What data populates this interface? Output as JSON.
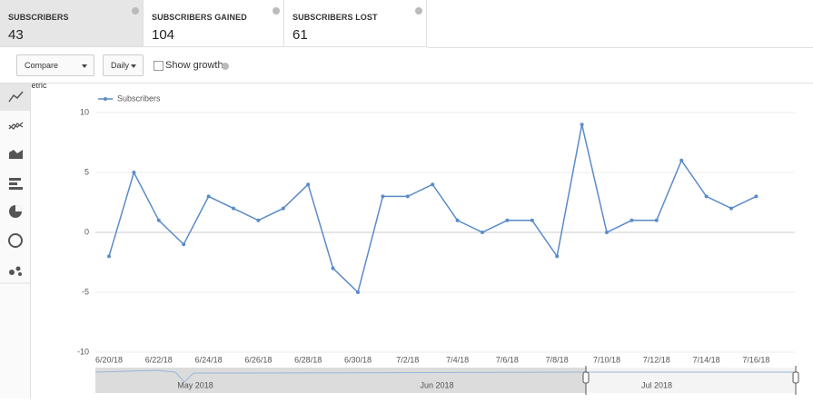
{
  "metrics": [
    {
      "label": "SUBSCRIBERS",
      "value": 43
    },
    {
      "label": "SUBSCRIBERS GAINED",
      "value": 104
    },
    {
      "label": "SUBSCRIBERS LOST",
      "value": 61
    }
  ],
  "controls": {
    "compare": "Compare metric",
    "interval": "Daily",
    "growth": "Show growth"
  },
  "range_selector": {
    "labels": [
      "May 2018",
      "Jun 2018",
      "Jul 2018"
    ]
  },
  "chart_data": {
    "type": "line",
    "categories": [
      "6/20/18",
      null,
      "6/22/18",
      null,
      "6/24/18",
      null,
      "6/26/18",
      null,
      "6/28/18",
      null,
      "6/30/18",
      null,
      "7/2/18",
      null,
      "7/4/18",
      null,
      "7/6/18",
      null,
      "7/8/18",
      null,
      "7/10/18",
      null,
      "7/12/18",
      null,
      "7/14/18",
      null,
      "7/16/18"
    ],
    "series": [
      {
        "name": "Subscribers",
        "color": "#5b8bc9",
        "values": [
          -2,
          5,
          1,
          -1,
          3,
          2,
          1,
          2,
          4,
          -3,
          -5,
          3,
          3,
          4,
          1,
          0,
          1,
          1,
          -2,
          9,
          0,
          1,
          1,
          6,
          3,
          2,
          3
        ]
      }
    ],
    "ylim": [
      -10,
      10
    ],
    "yticks": [
      -10,
      -5,
      0,
      5,
      10
    ],
    "grid": true,
    "legend": "top-left"
  }
}
